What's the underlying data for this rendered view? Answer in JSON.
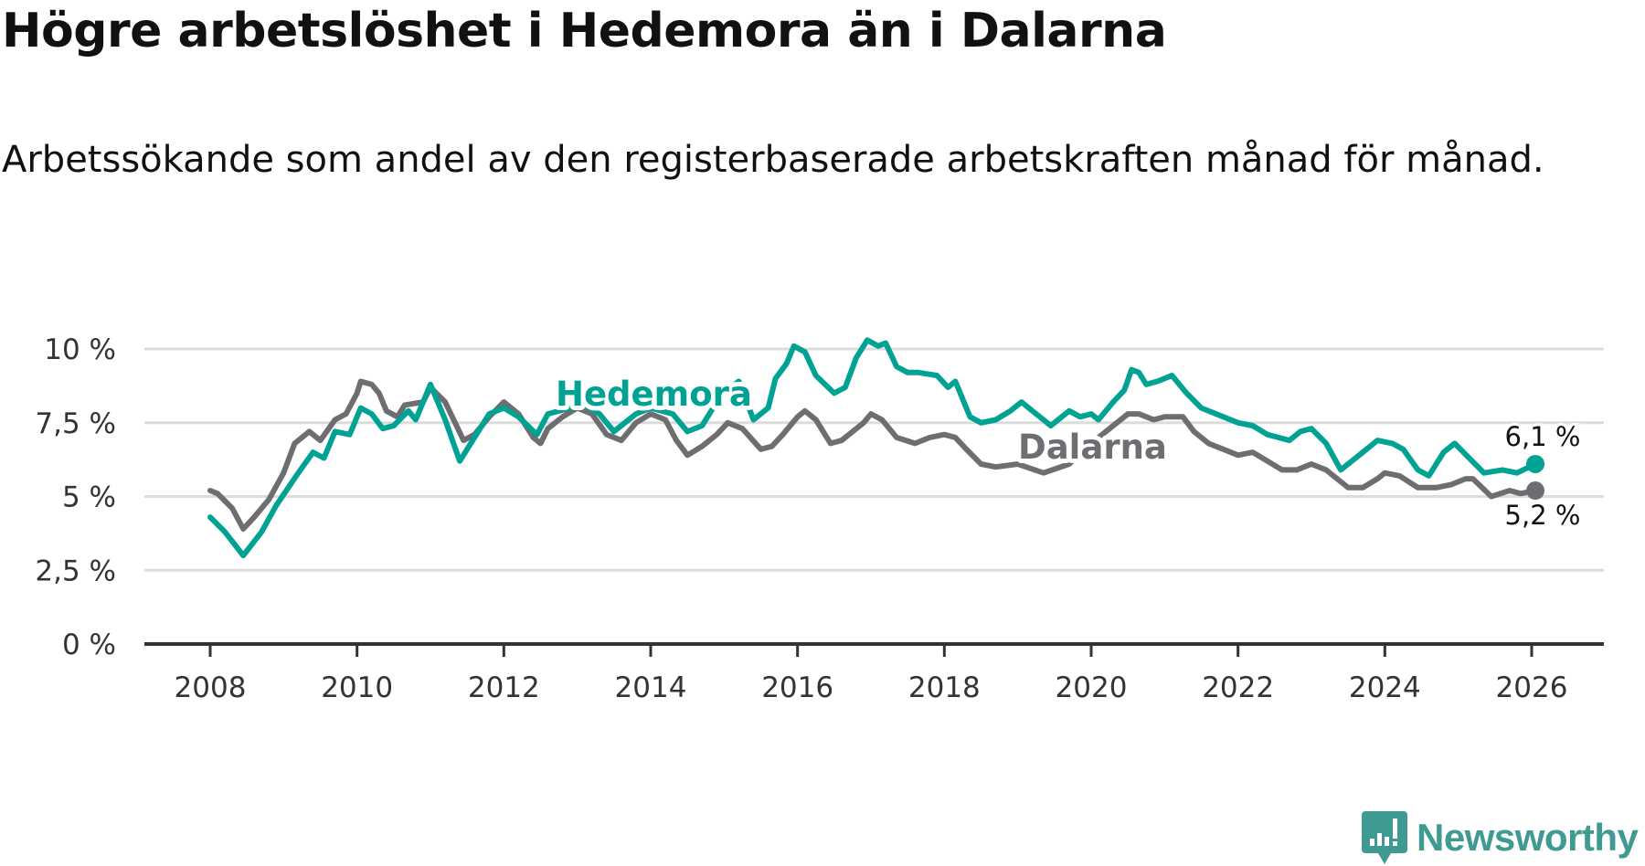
{
  "chart_data": {
    "type": "line",
    "title": "Högre arbetslöshet i Hedemora än i Dalarna",
    "subtitle": "Arbetssökande som andel av den registerbaserade arbetskraften månad för månad.",
    "xlabel": "",
    "ylabel": "",
    "xlim": [
      2007.1,
      2027.0
    ],
    "ylim": [
      0,
      10
    ],
    "yticks": [
      0,
      2.5,
      5,
      7.5,
      10
    ],
    "ytick_labels": [
      "0 %",
      "2,5 %",
      "5 %",
      "7,5 %",
      "10 %"
    ],
    "xticks": [
      2008,
      2010,
      2012,
      2014,
      2016,
      2018,
      2020,
      2022,
      2024,
      2026
    ],
    "xtick_labels": [
      "2008",
      "2010",
      "2012",
      "2014",
      "2016",
      "2018",
      "2020",
      "2022",
      "2024",
      "2026"
    ],
    "grid": true,
    "series": [
      {
        "name": "Hedemora",
        "color": "#00a294",
        "end_label": "6,1 %",
        "x": [
          2008.0,
          2008.2,
          2008.45,
          2008.7,
          2008.9,
          2009.2,
          2009.4,
          2009.55,
          2009.7,
          2009.9,
          2010.05,
          2010.2,
          2010.35,
          2010.5,
          2010.7,
          2010.8,
          2011.0,
          2011.2,
          2011.4,
          2011.6,
          2011.8,
          2012.0,
          2012.2,
          2012.45,
          2012.6,
          2012.9,
          2013.1,
          2013.3,
          2013.5,
          2013.8,
          2014.0,
          2014.3,
          2014.5,
          2014.7,
          2014.95,
          2015.2,
          2015.4,
          2015.6,
          2015.7,
          2015.85,
          2015.95,
          2016.1,
          2016.25,
          2016.5,
          2016.65,
          2016.8,
          2016.95,
          2017.1,
          2017.2,
          2017.35,
          2017.5,
          2017.65,
          2017.9,
          2018.05,
          2018.15,
          2018.35,
          2018.5,
          2018.7,
          2018.9,
          2019.05,
          2019.2,
          2019.45,
          2019.7,
          2019.85,
          2020.0,
          2020.1,
          2020.3,
          2020.45,
          2020.55,
          2020.65,
          2020.75,
          2020.9,
          2021.1,
          2021.3,
          2021.5,
          2021.8,
          2022.0,
          2022.2,
          2022.4,
          2022.7,
          2022.85,
          2023.0,
          2023.2,
          2023.4,
          2023.7,
          2023.9,
          2024.1,
          2024.25,
          2024.45,
          2024.6,
          2024.8,
          2024.95,
          2025.15,
          2025.35,
          2025.6,
          2025.8,
          2026.05
        ],
        "y": [
          4.3,
          3.8,
          3.0,
          3.8,
          4.7,
          5.8,
          6.5,
          6.3,
          7.2,
          7.1,
          8.0,
          7.8,
          7.3,
          7.4,
          7.9,
          7.6,
          8.8,
          7.6,
          6.2,
          7.0,
          7.8,
          8.0,
          7.7,
          7.1,
          7.8,
          8.0,
          8.1,
          7.8,
          7.2,
          7.8,
          8.0,
          7.8,
          7.2,
          7.4,
          8.4,
          8.9,
          7.6,
          8.0,
          9.0,
          9.5,
          10.1,
          9.9,
          9.1,
          8.5,
          8.7,
          9.7,
          10.3,
          10.1,
          10.2,
          9.4,
          9.2,
          9.2,
          9.1,
          8.7,
          8.9,
          7.7,
          7.5,
          7.6,
          7.9,
          8.2,
          7.9,
          7.4,
          7.9,
          7.7,
          7.8,
          7.6,
          8.2,
          8.6,
          9.3,
          9.2,
          8.8,
          8.9,
          9.1,
          8.5,
          8.0,
          7.7,
          7.5,
          7.4,
          7.1,
          6.9,
          7.2,
          7.3,
          6.8,
          5.9,
          6.5,
          6.9,
          6.8,
          6.6,
          5.9,
          5.7,
          6.5,
          6.8,
          6.3,
          5.8,
          5.9,
          5.8,
          6.1
        ]
      },
      {
        "name": "Dalarna",
        "color": "#6e6d72",
        "end_label": "5,2 %",
        "x": [
          2008.0,
          2008.1,
          2008.3,
          2008.45,
          2008.6,
          2008.8,
          2009.0,
          2009.15,
          2009.35,
          2009.5,
          2009.7,
          2009.85,
          2010.0,
          2010.05,
          2010.2,
          2010.3,
          2010.4,
          2010.55,
          2010.65,
          2010.9,
          2011.0,
          2011.2,
          2011.45,
          2011.6,
          2011.8,
          2012.0,
          2012.2,
          2012.4,
          2012.5,
          2012.6,
          2012.8,
          2013.0,
          2013.2,
          2013.4,
          2013.6,
          2013.8,
          2014.0,
          2014.2,
          2014.35,
          2014.5,
          2014.7,
          2014.9,
          2015.05,
          2015.25,
          2015.5,
          2015.65,
          2015.8,
          2016.0,
          2016.1,
          2016.25,
          2016.45,
          2016.6,
          2016.9,
          2017.0,
          2017.15,
          2017.35,
          2017.6,
          2017.8,
          2018.0,
          2018.15,
          2018.3,
          2018.5,
          2018.7,
          2019.0,
          2019.35,
          2019.7,
          2020.0,
          2020.3,
          2020.5,
          2020.65,
          2020.85,
          2021.0,
          2021.25,
          2021.4,
          2021.6,
          2021.8,
          2022.0,
          2022.2,
          2022.4,
          2022.6,
          2022.8,
          2023.0,
          2023.2,
          2023.35,
          2023.5,
          2023.7,
          2023.9,
          2024.0,
          2024.2,
          2024.45,
          2024.7,
          2024.9,
          2025.1,
          2025.2,
          2025.45,
          2025.7,
          2025.85,
          2026.05
        ],
        "y": [
          5.2,
          5.1,
          4.6,
          3.9,
          4.3,
          4.9,
          5.8,
          6.8,
          7.2,
          6.9,
          7.6,
          7.8,
          8.5,
          8.9,
          8.8,
          8.5,
          7.9,
          7.7,
          8.1,
          8.2,
          8.7,
          8.2,
          6.9,
          7.1,
          7.7,
          8.2,
          7.8,
          7.0,
          6.8,
          7.3,
          7.7,
          8.0,
          7.8,
          7.1,
          6.9,
          7.5,
          7.8,
          7.6,
          6.9,
          6.4,
          6.7,
          7.1,
          7.5,
          7.3,
          6.6,
          6.7,
          7.1,
          7.7,
          7.9,
          7.6,
          6.8,
          6.9,
          7.5,
          7.8,
          7.6,
          7.0,
          6.8,
          7.0,
          7.1,
          7.0,
          6.6,
          6.1,
          6.0,
          6.1,
          5.8,
          6.1,
          6.8,
          7.4,
          7.8,
          7.8,
          7.6,
          7.7,
          7.7,
          7.2,
          6.8,
          6.6,
          6.4,
          6.5,
          6.2,
          5.9,
          5.9,
          6.1,
          5.9,
          5.6,
          5.3,
          5.3,
          5.6,
          5.8,
          5.7,
          5.3,
          5.3,
          5.4,
          5.6,
          5.6,
          5.0,
          5.2,
          5.1,
          5.2
        ]
      }
    ],
    "annotations": [
      "Hedemora",
      "Dalarna",
      "6,1 %",
      "5,2 %"
    ]
  },
  "branding": {
    "logo_text": "Newsworthy",
    "logo_color": "#3f9a92"
  }
}
